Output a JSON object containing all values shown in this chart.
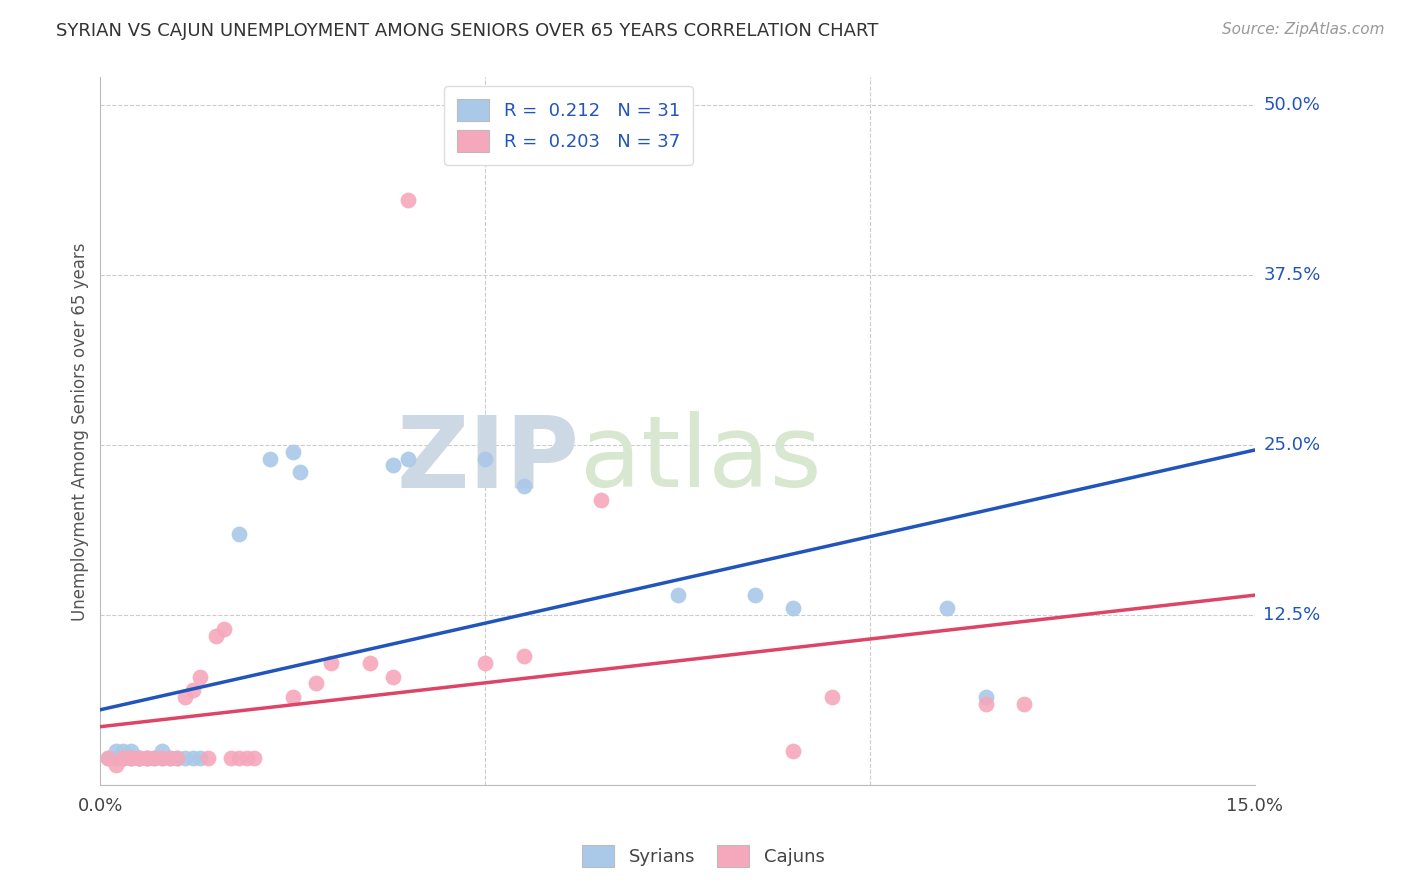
{
  "title": "SYRIAN VS CAJUN UNEMPLOYMENT AMONG SENIORS OVER 65 YEARS CORRELATION CHART",
  "source": "Source: ZipAtlas.com",
  "ylabel": "Unemployment Among Seniors over 65 years",
  "xlim": [
    0.0,
    0.15
  ],
  "ylim": [
    0.0,
    0.52
  ],
  "yticks": [
    0.0,
    0.125,
    0.25,
    0.375,
    0.5
  ],
  "ytick_labels": [
    "",
    "12.5%",
    "25.0%",
    "37.5%",
    "50.0%"
  ],
  "xtick_labels": [
    "0.0%",
    "15.0%"
  ],
  "xtick_positions": [
    0.0,
    0.15
  ],
  "syrians_x": [
    0.001,
    0.002,
    0.002,
    0.003,
    0.003,
    0.004,
    0.004,
    0.005,
    0.005,
    0.006,
    0.007,
    0.008,
    0.008,
    0.009,
    0.01,
    0.011,
    0.012,
    0.013,
    0.018,
    0.022,
    0.025,
    0.026,
    0.038,
    0.04,
    0.05,
    0.055,
    0.075,
    0.085,
    0.09,
    0.11,
    0.115
  ],
  "syrians_y": [
    0.02,
    0.02,
    0.025,
    0.02,
    0.025,
    0.02,
    0.025,
    0.02,
    0.02,
    0.02,
    0.02,
    0.02,
    0.025,
    0.02,
    0.02,
    0.02,
    0.02,
    0.02,
    0.185,
    0.24,
    0.245,
    0.23,
    0.235,
    0.24,
    0.24,
    0.22,
    0.14,
    0.14,
    0.13,
    0.13,
    0.065
  ],
  "cajuns_x": [
    0.001,
    0.002,
    0.003,
    0.003,
    0.004,
    0.004,
    0.005,
    0.005,
    0.006,
    0.006,
    0.007,
    0.008,
    0.009,
    0.01,
    0.011,
    0.012,
    0.013,
    0.014,
    0.015,
    0.016,
    0.017,
    0.018,
    0.019,
    0.02,
    0.025,
    0.028,
    0.03,
    0.035,
    0.038,
    0.04,
    0.05,
    0.055,
    0.065,
    0.09,
    0.095,
    0.115,
    0.12
  ],
  "cajuns_y": [
    0.02,
    0.015,
    0.02,
    0.02,
    0.02,
    0.02,
    0.02,
    0.02,
    0.02,
    0.02,
    0.02,
    0.02,
    0.02,
    0.02,
    0.065,
    0.07,
    0.08,
    0.02,
    0.11,
    0.115,
    0.02,
    0.02,
    0.02,
    0.02,
    0.065,
    0.075,
    0.09,
    0.09,
    0.08,
    0.43,
    0.09,
    0.095,
    0.21,
    0.025,
    0.065,
    0.06,
    0.06
  ],
  "syrian_color": "#aac8e8",
  "cajun_color": "#f5a8bc",
  "syrian_line_color": "#2255bb",
  "cajun_line_color": "#dd4466",
  "syrian_R": 0.212,
  "syrian_N": 31,
  "cajun_R": 0.203,
  "cajun_N": 37,
  "legend_text_color": "#2255bb",
  "grid_color": "#cccccc",
  "background_color": "#ffffff",
  "watermark_zip": "ZIP",
  "watermark_atlas": "atlas",
  "watermark_color": "#cdd8e5"
}
